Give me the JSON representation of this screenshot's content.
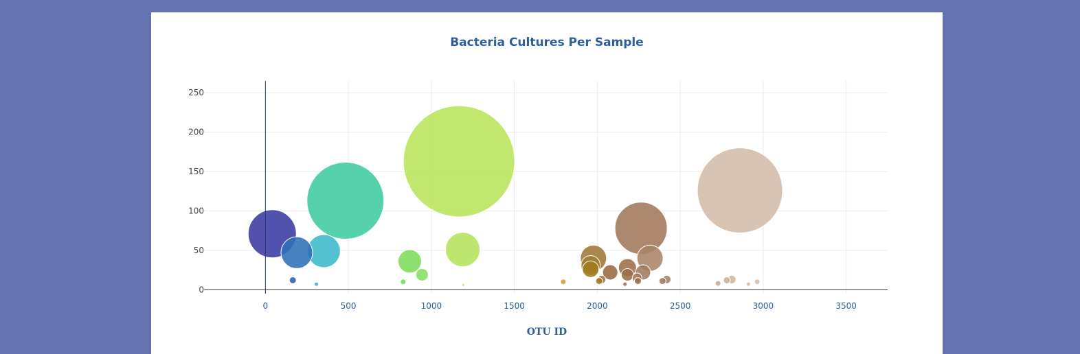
{
  "chart_data": {
    "type": "scatter",
    "subtype": "bubble",
    "title": "Bacteria Cultures Per Sample",
    "xlabel": "OTU ID",
    "ylabel": "",
    "xlim": [
      -370,
      3750
    ],
    "ylim": [
      -5,
      265
    ],
    "x_ticks": [
      0,
      500,
      1000,
      1500,
      2000,
      2500,
      3000,
      3500
    ],
    "y_ticks": [
      0,
      50,
      100,
      150,
      200,
      250
    ],
    "grid": true,
    "colors": {
      "tick_x": "#2a5d9a",
      "tick_y": "#444444",
      "grid": "#ebebeb",
      "axis": "#1f3a6e",
      "title": "#2a5d9a"
    },
    "points": [
      {
        "x": 41,
        "y": 71,
        "color": "#3a3aa0",
        "r": 35
      },
      {
        "x": 189,
        "y": 47,
        "color": "#2f6fb8",
        "r": 23
      },
      {
        "x": 165,
        "y": 12,
        "color": "#2f5fa8",
        "r": 5
      },
      {
        "x": 352,
        "y": 49,
        "color": "#3bb8c8",
        "r": 24
      },
      {
        "x": 307,
        "y": 7,
        "color": "#3aa8d0",
        "r": 3
      },
      {
        "x": 482,
        "y": 113,
        "color": "#3dcba0",
        "r": 56
      },
      {
        "x": 870,
        "y": 36,
        "color": "#7ddc5a",
        "r": 17
      },
      {
        "x": 944,
        "y": 19,
        "color": "#88de62",
        "r": 9
      },
      {
        "x": 830,
        "y": 10,
        "color": "#78d850",
        "r": 4
      },
      {
        "x": 1167,
        "y": 163,
        "color": "#b8e45a",
        "r": 81
      },
      {
        "x": 1189,
        "y": 51,
        "color": "#b4e35a",
        "r": 25
      },
      {
        "x": 1193,
        "y": 6,
        "color": "#c0e468",
        "r": 2
      },
      {
        "x": 1795,
        "y": 10,
        "color": "#c8a040",
        "r": 4
      },
      {
        "x": 1977,
        "y": 40,
        "color": "#a07838",
        "r": 19
      },
      {
        "x": 1960,
        "y": 31,
        "color": "#a07c30",
        "r": 14
      },
      {
        "x": 1960,
        "y": 26,
        "color": "#a07c20",
        "r": 12
      },
      {
        "x": 2011,
        "y": 11,
        "color": "#a07830",
        "r": 5
      },
      {
        "x": 2026,
        "y": 13,
        "color": "#a07840",
        "r": 6
      },
      {
        "x": 2078,
        "y": 22,
        "color": "#986840",
        "r": 11
      },
      {
        "x": 2167,
        "y": 7,
        "color": "#9a6a48",
        "r": 3
      },
      {
        "x": 2182,
        "y": 28,
        "color": "#9c6e4a",
        "r": 13
      },
      {
        "x": 2182,
        "y": 19,
        "color": "#9c6e4a",
        "r": 9
      },
      {
        "x": 2240,
        "y": 15,
        "color": "#a07a58",
        "r": 7
      },
      {
        "x": 2245,
        "y": 11,
        "color": "#9c7050",
        "r": 5
      },
      {
        "x": 2264,
        "y": 78,
        "color": "#a0785a",
        "r": 38
      },
      {
        "x": 2276,
        "y": 22,
        "color": "#a07c5c",
        "r": 11
      },
      {
        "x": 2318,
        "y": 40,
        "color": "#a88466",
        "r": 19
      },
      {
        "x": 2393,
        "y": 11,
        "color": "#a07c60",
        "r": 5
      },
      {
        "x": 2419,
        "y": 13,
        "color": "#a48264",
        "r": 6
      },
      {
        "x": 2728,
        "y": 8,
        "color": "#c4aa94",
        "r": 4
      },
      {
        "x": 2781,
        "y": 12,
        "color": "#c8b098",
        "r": 5
      },
      {
        "x": 2811,
        "y": 13,
        "color": "#ccb49c",
        "r": 6
      },
      {
        "x": 2860,
        "y": 126,
        "color": "#d2bca8",
        "r": 62
      },
      {
        "x": 2911,
        "y": 7,
        "color": "#d0baa8",
        "r": 3
      },
      {
        "x": 2964,
        "y": 10,
        "color": "#d4c0b0",
        "r": 4
      }
    ]
  }
}
